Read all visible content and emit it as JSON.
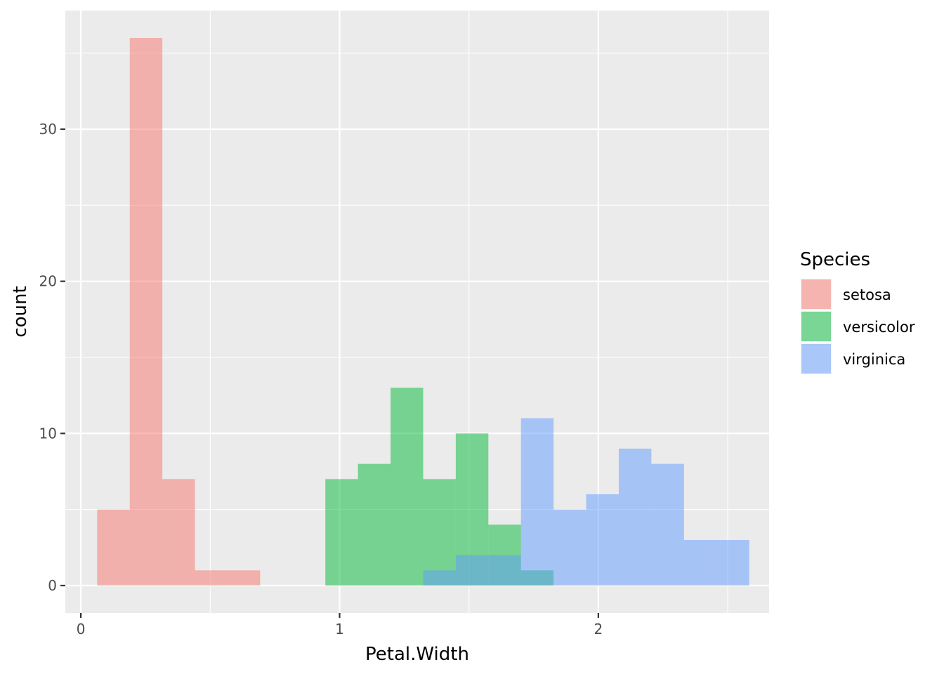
{
  "chart_data": {
    "type": "bar",
    "subtype": "histogram-overlaid",
    "title": "",
    "xlabel": "Petal.Width",
    "ylabel": "count",
    "xlim": [
      -0.06,
      2.66
    ],
    "ylim": [
      -1.8,
      37.8
    ],
    "x_ticks": [
      0,
      1,
      2
    ],
    "y_ticks": [
      0,
      10,
      20,
      30
    ],
    "grid": true,
    "bin_width": 0.126,
    "legend": {
      "title": "Species",
      "placement": "right"
    },
    "series": [
      {
        "name": "setosa",
        "color": "#F8766D",
        "bins": [
          {
            "x0": 0.063,
            "x1": 0.189,
            "count": 5
          },
          {
            "x0": 0.189,
            "x1": 0.315,
            "count": 36
          },
          {
            "x0": 0.315,
            "x1": 0.441,
            "count": 7
          },
          {
            "x0": 0.441,
            "x1": 0.567,
            "count": 1
          },
          {
            "x0": 0.567,
            "x1": 0.693,
            "count": 1
          }
        ]
      },
      {
        "name": "versicolor",
        "color": "#00BA38",
        "bins": [
          {
            "x0": 0.945,
            "x1": 1.071,
            "count": 7
          },
          {
            "x0": 1.071,
            "x1": 1.197,
            "count": 8
          },
          {
            "x0": 1.197,
            "x1": 1.323,
            "count": 13
          },
          {
            "x0": 1.323,
            "x1": 1.449,
            "count": 7
          },
          {
            "x0": 1.449,
            "x1": 1.575,
            "count": 10
          },
          {
            "x0": 1.575,
            "x1": 1.701,
            "count": 4
          },
          {
            "x0": 1.701,
            "x1": 1.827,
            "count": 1
          }
        ]
      },
      {
        "name": "virginica",
        "color": "#619CFF",
        "bins": [
          {
            "x0": 1.323,
            "x1": 1.449,
            "count": 1
          },
          {
            "x0": 1.449,
            "x1": 1.575,
            "count": 2
          },
          {
            "x0": 1.575,
            "x1": 1.701,
            "count": 2
          },
          {
            "x0": 1.701,
            "x1": 1.827,
            "count": 11
          },
          {
            "x0": 1.827,
            "x1": 1.953,
            "count": 5
          },
          {
            "x0": 1.953,
            "x1": 2.079,
            "count": 6
          },
          {
            "x0": 2.079,
            "x1": 2.205,
            "count": 9
          },
          {
            "x0": 2.205,
            "x1": 2.331,
            "count": 8
          },
          {
            "x0": 2.331,
            "x1": 2.457,
            "count": 3
          },
          {
            "x0": 2.457,
            "x1": 2.583,
            "count": 3
          }
        ]
      }
    ]
  }
}
